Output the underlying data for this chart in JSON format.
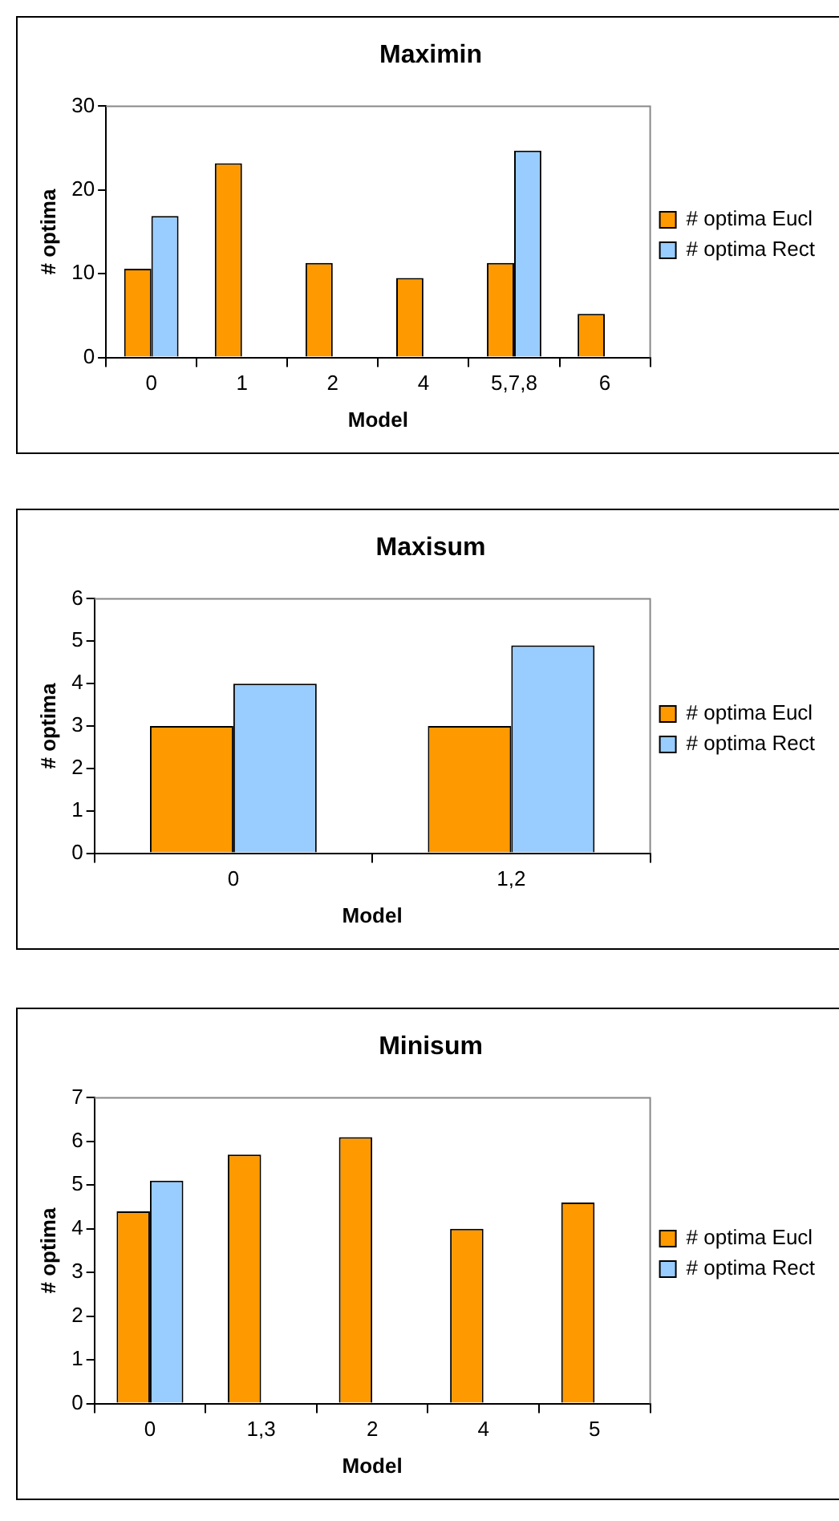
{
  "chart_data": [
    {
      "type": "bar",
      "title": "Maximin",
      "xlabel": "Model",
      "ylabel": "# optima",
      "categories": [
        "0",
        "1",
        "2",
        "4",
        "5,7,8",
        "6"
      ],
      "series": [
        {
          "name": "# optima Eucl",
          "color": "#ff9900",
          "values": [
            10.6,
            23.2,
            11.3,
            9.5,
            11.3,
            5.2
          ]
        },
        {
          "name": "# optima Rect",
          "color": "#99ccff",
          "values": [
            16.9,
            null,
            null,
            null,
            24.7,
            null
          ]
        }
      ],
      "ylim": [
        0,
        30
      ],
      "yticks": [
        0,
        10,
        20,
        30
      ],
      "grid": false,
      "legend": "right"
    },
    {
      "type": "bar",
      "title": "Maxisum",
      "xlabel": "Model",
      "ylabel": "# optima",
      "categories": [
        "0",
        "1,2"
      ],
      "series": [
        {
          "name": "# optima Eucl",
          "color": "#ff9900",
          "values": [
            3,
            3
          ]
        },
        {
          "name": "# optima Rect",
          "color": "#99ccff",
          "values": [
            4,
            4.9
          ]
        }
      ],
      "ylim": [
        0,
        6
      ],
      "yticks": [
        0,
        1,
        2,
        3,
        4,
        5,
        6
      ],
      "grid": false,
      "legend": "right"
    },
    {
      "type": "bar",
      "title": "Minisum",
      "xlabel": "Model",
      "ylabel": "# optima",
      "categories": [
        "0",
        "1,3",
        "2",
        "4",
        "5"
      ],
      "series": [
        {
          "name": "# optima Eucl",
          "color": "#ff9900",
          "values": [
            4.4,
            5.7,
            6.1,
            4,
            4.6
          ]
        },
        {
          "name": "# optima Rect",
          "color": "#99ccff",
          "values": [
            5.1,
            null,
            null,
            null,
            null
          ]
        }
      ],
      "ylim": [
        0,
        7
      ],
      "yticks": [
        0,
        1,
        2,
        3,
        4,
        5,
        6,
        7
      ],
      "grid": false,
      "legend": "right"
    }
  ]
}
